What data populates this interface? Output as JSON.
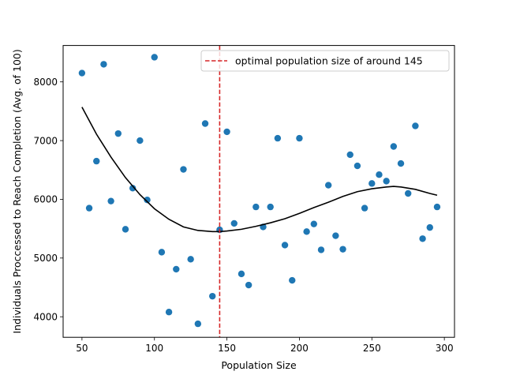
{
  "chart_data": {
    "type": "scatter",
    "title": "",
    "xlabel": "Population Size",
    "ylabel": "Individuals Proccessed to Reach Completion (Avg. of 100)",
    "xlim": [
      37,
      307
    ],
    "ylim": [
      3650,
      8620
    ],
    "xticks": [
      50,
      100,
      150,
      200,
      250,
      300
    ],
    "yticks": [
      4000,
      5000,
      6000,
      7000,
      8000
    ],
    "grid": false,
    "legend_position": "upper-right",
    "colors": {
      "points": "#1f77b4",
      "fit": "#000000",
      "vline": "#d62728"
    },
    "points": {
      "x": [
        50,
        55,
        60,
        65,
        70,
        75,
        80,
        85,
        90,
        95,
        100,
        105,
        110,
        115,
        120,
        125,
        130,
        135,
        140,
        145,
        150,
        155,
        160,
        165,
        170,
        175,
        180,
        185,
        190,
        195,
        200,
        205,
        210,
        215,
        220,
        225,
        230,
        235,
        240,
        245,
        250,
        255,
        260,
        265,
        270,
        275,
        280,
        285,
        290,
        295
      ],
      "y": [
        8150,
        5850,
        6650,
        8300,
        5970,
        7120,
        5490,
        6190,
        7000,
        5990,
        8420,
        5100,
        4080,
        4810,
        6510,
        4980,
        3880,
        7290,
        4350,
        5480,
        7150,
        5590,
        4730,
        4540,
        5870,
        5530,
        5870,
        7040,
        5220,
        4620,
        7040,
        5450,
        5580,
        5140,
        6240,
        5380,
        5150,
        6760,
        6570,
        5850,
        6270,
        6420,
        6310,
        6900,
        6610,
        6100,
        7250,
        5330,
        5520,
        5870
      ]
    },
    "fit_curve": {
      "x": [
        50,
        60,
        70,
        80,
        90,
        100,
        110,
        120,
        130,
        140,
        145,
        150,
        160,
        170,
        180,
        190,
        200,
        210,
        220,
        230,
        240,
        250,
        260,
        265,
        270,
        280,
        290,
        295
      ],
      "y": [
        7570,
        7110,
        6720,
        6370,
        6080,
        5840,
        5660,
        5530,
        5470,
        5450,
        5450,
        5460,
        5490,
        5540,
        5600,
        5670,
        5760,
        5860,
        5950,
        6050,
        6130,
        6180,
        6210,
        6220,
        6210,
        6170,
        6100,
        6070
      ]
    },
    "vline": {
      "x": 145,
      "label": "optimal population size of around 145"
    }
  }
}
